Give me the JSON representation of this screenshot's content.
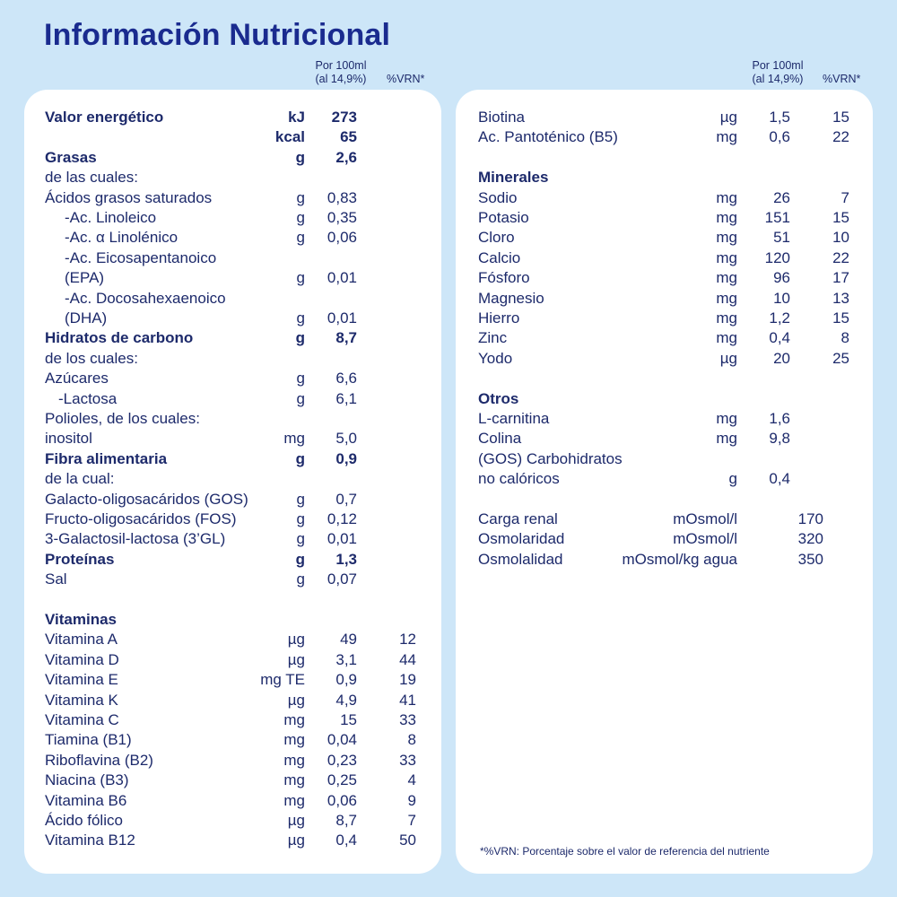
{
  "title": "Información Nutricional",
  "headers": {
    "per_line1": "Por 100ml",
    "per_line2": "(al 14,9%)",
    "vrn": "%VRN*"
  },
  "left": [
    {
      "name": "Valor energético",
      "unit": "kJ",
      "value": "273",
      "vrn": "",
      "bold": true
    },
    {
      "name": "",
      "unit": "kcal",
      "value": "65",
      "vrn": "",
      "bold": true
    },
    {
      "name": "Grasas",
      "unit": "g",
      "value": "2,6",
      "vrn": "",
      "bold": true
    },
    {
      "name": "de las cuales:",
      "unit": "",
      "value": "",
      "vrn": ""
    },
    {
      "name": "Ácidos grasos saturados",
      "unit": "g",
      "value": "0,83",
      "vrn": ""
    },
    {
      "name": "-Ac. Linoleico",
      "unit": "g",
      "value": "0,35",
      "vrn": "",
      "indent": 1
    },
    {
      "name": "-Ac. α Linolénico",
      "unit": "g",
      "value": "0,06",
      "vrn": "",
      "indent": 1
    },
    {
      "name": "-Ac. Eicosapentanoico",
      "unit": "",
      "value": "",
      "vrn": "",
      "indent": 1
    },
    {
      "name": "(EPA)",
      "unit": "g",
      "value": "0,01",
      "vrn": "",
      "indent": 1
    },
    {
      "name": "-Ac. Docosahexaenoico",
      "unit": "",
      "value": "",
      "vrn": "",
      "indent": 1
    },
    {
      "name": "(DHA)",
      "unit": "g",
      "value": "0,01",
      "vrn": "",
      "indent": 1
    },
    {
      "name": "Hidratos de carbono",
      "unit": "g",
      "value": "8,7",
      "vrn": "",
      "bold": true
    },
    {
      "name": "de los cuales:",
      "unit": "",
      "value": "",
      "vrn": ""
    },
    {
      "name": "Azúcares",
      "unit": "g",
      "value": "6,6",
      "vrn": ""
    },
    {
      "name": "-Lactosa",
      "unit": "g",
      "value": "6,1",
      "vrn": "",
      "indent": 2
    },
    {
      "name": "Polioles, de los cuales:",
      "unit": "",
      "value": "",
      "vrn": ""
    },
    {
      "name": "inositol",
      "unit": "mg",
      "value": "5,0",
      "vrn": ""
    },
    {
      "name": "Fibra alimentaria",
      "unit": "g",
      "value": "0,9",
      "vrn": "",
      "bold": true
    },
    {
      "name": "de la cual:",
      "unit": "",
      "value": "",
      "vrn": ""
    },
    {
      "name": "Galacto-oligosacáridos (GOS)",
      "unit": "g",
      "value": "0,7",
      "vrn": ""
    },
    {
      "name": "Fructo-oligosacáridos (FOS)",
      "unit": "g",
      "value": "0,12",
      "vrn": ""
    },
    {
      "name": "3-Galactosil-lactosa (3’GL)",
      "unit": "g",
      "value": "0,01",
      "vrn": ""
    },
    {
      "name": "Proteínas",
      "unit": "g",
      "value": "1,3",
      "vrn": "",
      "bold": true
    },
    {
      "name": "Sal",
      "unit": "g",
      "value": "0,07",
      "vrn": ""
    },
    {
      "gap": true
    },
    {
      "name": "Vitaminas",
      "unit": "",
      "value": "",
      "vrn": "",
      "bold": true
    },
    {
      "name": "Vitamina A",
      "unit": "µg",
      "value": "49",
      "vrn": "12"
    },
    {
      "name": "Vitamina D",
      "unit": "µg",
      "value": "3,1",
      "vrn": "44"
    },
    {
      "name": "Vitamina E",
      "unit": "mg TE",
      "value": "0,9",
      "vrn": "19"
    },
    {
      "name": "Vitamina K",
      "unit": "µg",
      "value": "4,9",
      "vrn": "41"
    },
    {
      "name": "Vitamina C",
      "unit": "mg",
      "value": "15",
      "vrn": "33"
    },
    {
      "name": "Tiamina (B1)",
      "unit": "mg",
      "value": "0,04",
      "vrn": "8"
    },
    {
      "name": "Riboflavina (B2)",
      "unit": "mg",
      "value": "0,23",
      "vrn": "33"
    },
    {
      "name": "Niacina (B3)",
      "unit": "mg",
      "value": "0,25",
      "vrn": "4"
    },
    {
      "name": "Vitamina B6",
      "unit": "mg",
      "value": "0,06",
      "vrn": "9"
    },
    {
      "name": "Ácido fólico",
      "unit": "µg",
      "value": "8,7",
      "vrn": "7"
    },
    {
      "name": "Vitamina B12",
      "unit": "µg",
      "value": "0,4",
      "vrn": "50"
    }
  ],
  "right": [
    {
      "name": "Biotina",
      "unit": "µg",
      "value": "1,5",
      "vrn": "15"
    },
    {
      "name": "Ac. Pantoténico (B5)",
      "unit": "mg",
      "value": "0,6",
      "vrn": "22"
    },
    {
      "gap": true
    },
    {
      "name": "Minerales",
      "unit": "",
      "value": "",
      "vrn": "",
      "bold": true
    },
    {
      "name": "Sodio",
      "unit": "mg",
      "value": "26",
      "vrn": "7"
    },
    {
      "name": "Potasio",
      "unit": "mg",
      "value": "151",
      "vrn": "15"
    },
    {
      "name": "Cloro",
      "unit": "mg",
      "value": "51",
      "vrn": "10"
    },
    {
      "name": "Calcio",
      "unit": "mg",
      "value": "120",
      "vrn": "22"
    },
    {
      "name": "Fósforo",
      "unit": "mg",
      "value": "96",
      "vrn": "17"
    },
    {
      "name": "Magnesio",
      "unit": "mg",
      "value": "10",
      "vrn": "13"
    },
    {
      "name": "Hierro",
      "unit": "mg",
      "value": "1,2",
      "vrn": "15"
    },
    {
      "name": "Zinc",
      "unit": "mg",
      "value": "0,4",
      "vrn": "8"
    },
    {
      "name": "Yodo",
      "unit": "µg",
      "value": "20",
      "vrn": "25"
    },
    {
      "gap": true
    },
    {
      "name": "Otros",
      "unit": "",
      "value": "",
      "vrn": "",
      "bold": true
    },
    {
      "name": "L-carnitina",
      "unit": "mg",
      "value": "1,6",
      "vrn": ""
    },
    {
      "name": "Colina",
      "unit": "mg",
      "value": "9,8",
      "vrn": ""
    },
    {
      "name": "(GOS) Carbohidratos",
      "unit": "",
      "value": "",
      "vrn": ""
    },
    {
      "name": "no calóricos",
      "unit": "g",
      "value": "0,4",
      "vrn": ""
    },
    {
      "gap": true
    },
    {
      "name": "Carga renal",
      "unit": "mOsmol/l",
      "value": "170",
      "vrn": "",
      "alt": true
    },
    {
      "name": "Osmolaridad",
      "unit": "mOsmol/l",
      "value": "320",
      "vrn": "",
      "alt": true
    },
    {
      "name": "Osmolalidad",
      "unit": "mOsmol/kg agua",
      "value": "350",
      "vrn": "",
      "alt": true
    }
  ],
  "footnote": "*%VRN: Porcentaje sobre el valor de referencia del nutriente"
}
